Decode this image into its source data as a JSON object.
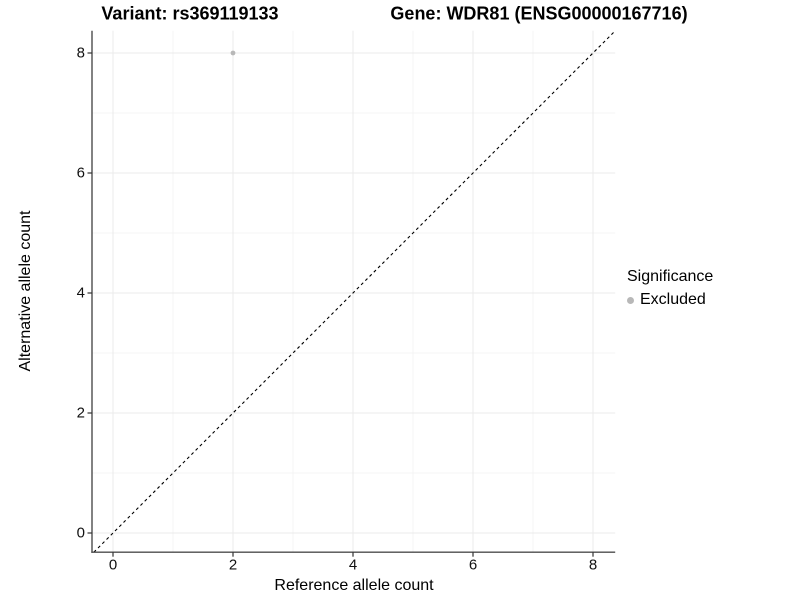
{
  "chart_data": {
    "type": "scatter",
    "titles": {
      "left": "Variant: rs369119133",
      "right": "Gene: WDR81 (ENSG00000167716)"
    },
    "xlabel": "Reference allele count",
    "ylabel": "Alternative allele count",
    "xticks": [
      0,
      2,
      4,
      6,
      8
    ],
    "yticks": [
      0,
      2,
      4,
      6,
      8
    ],
    "xlim": [
      -0.35,
      8.37
    ],
    "ylim": [
      -0.32,
      8.37
    ],
    "grid": "major gridlines at even values, minor at odd values, light gray, on white panel",
    "points": [
      {
        "x": 2,
        "y": 8,
        "series": "Excluded"
      }
    ],
    "reference_line": {
      "type": "identity y=x",
      "style": "dashed",
      "color": "#000000"
    },
    "legend": {
      "title": "Significance",
      "position": "right-center",
      "entries": [
        {
          "label": "Excluded",
          "color": "#b8b8b8"
        }
      ]
    },
    "colors": {
      "point": "#b8b8b8",
      "grid_major": "#ebebeb",
      "grid_minor": "#f4f4f4",
      "axis_line": "#4d4d4d",
      "text": "#000000"
    }
  }
}
